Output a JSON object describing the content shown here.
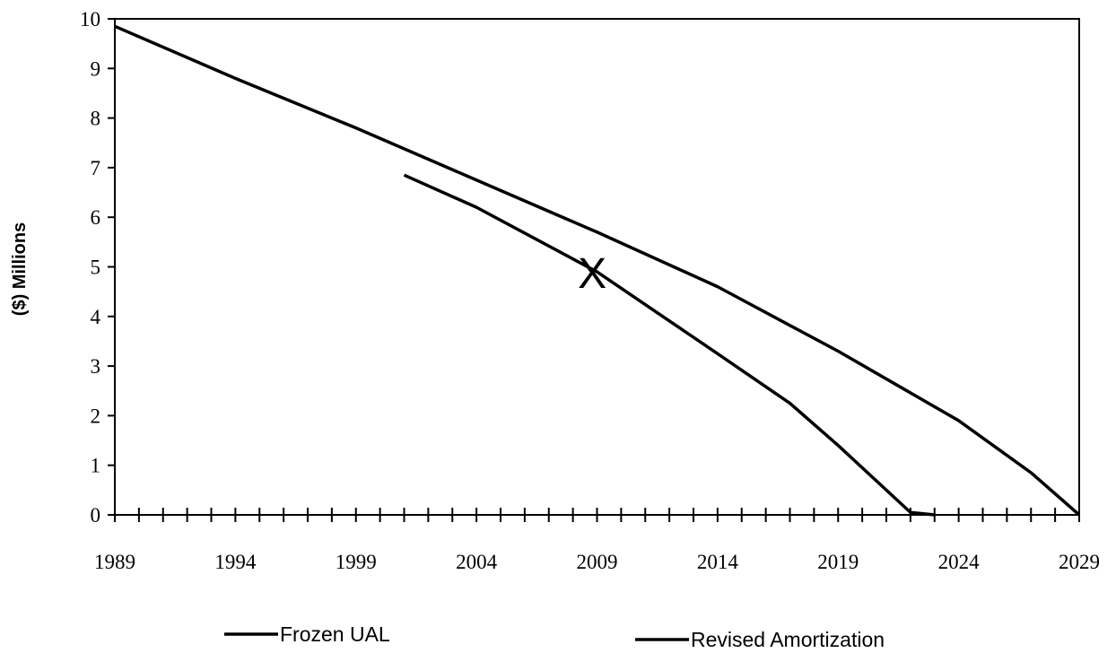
{
  "chart_data": {
    "type": "line",
    "y_label": "($) Millions",
    "xlim": [
      1989,
      2029
    ],
    "xticks": [
      1989,
      1994,
      1999,
      2004,
      2009,
      2014,
      2019,
      2024,
      2029
    ],
    "ylim": [
      0,
      10
    ],
    "yticks": [
      0,
      1,
      2,
      3,
      4,
      5,
      6,
      7,
      8,
      9,
      10
    ],
    "series": [
      {
        "name": "Frozen UAL",
        "color": "#000000",
        "x": [
          1989,
          1994,
          1999,
          2004,
          2009,
          2014,
          2019,
          2024,
          2027,
          2029
        ],
        "values": [
          9.85,
          8.8,
          7.8,
          6.75,
          5.7,
          4.6,
          3.3,
          1.9,
          0.85,
          0
        ]
      },
      {
        "name": "Revised Amortization",
        "color": "#000000",
        "x": [
          2001,
          2004,
          2009,
          2014,
          2017,
          2019,
          2022,
          2023
        ],
        "values": [
          6.85,
          6.2,
          4.9,
          3.25,
          2.25,
          1.4,
          0.05,
          0
        ]
      }
    ],
    "annotations": [
      {
        "text": "X",
        "x": 2008.8,
        "y": 4.9
      }
    ]
  }
}
